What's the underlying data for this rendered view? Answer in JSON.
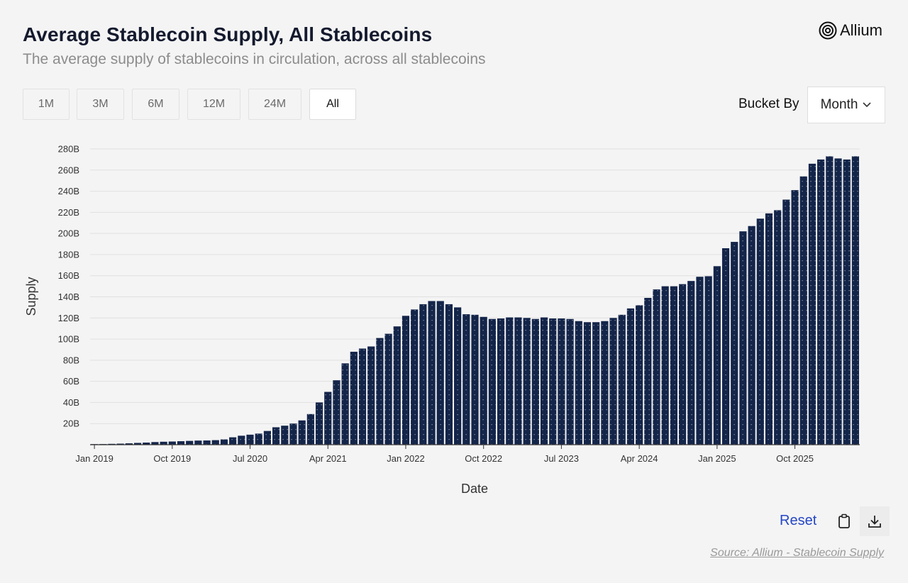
{
  "header": {
    "title": "Average Stablecoin Supply, All Stablecoins",
    "subtitle": "The average supply of stablecoins in circulation, across all stablecoins"
  },
  "logo": {
    "text": "Allium",
    "icon": "allium-logo-icon"
  },
  "time_ranges": [
    {
      "label": "1M",
      "active": false
    },
    {
      "label": "3M",
      "active": false
    },
    {
      "label": "6M",
      "active": false
    },
    {
      "label": "12M",
      "active": false
    },
    {
      "label": "24M",
      "active": false
    },
    {
      "label": "All",
      "active": true
    }
  ],
  "bucket": {
    "label": "Bucket By",
    "value": "Month",
    "icon": "chevron-down-icon"
  },
  "footer": {
    "reset_label": "Reset",
    "copy_icon": "clipboard-icon",
    "download_icon": "download-icon",
    "source": "Source: Allium - Stablecoin Supply"
  },
  "colors": {
    "bar": "#14254a",
    "accent": "#2446c6",
    "grid": "#e0e0e0"
  },
  "chart_data": {
    "type": "bar",
    "xlabel": "Date",
    "ylabel": "Supply",
    "ylim": [
      0,
      280
    ],
    "yticks": [
      20,
      40,
      60,
      80,
      100,
      120,
      140,
      160,
      180,
      200,
      220,
      240,
      260,
      280
    ],
    "ytick_labels": [
      "20B",
      "40B",
      "60B",
      "80B",
      "100B",
      "120B",
      "140B",
      "160B",
      "180B",
      "200B",
      "220B",
      "240B",
      "260B",
      "280B"
    ],
    "xtick_labels": [
      "Jan 2019",
      "Oct 2019",
      "Jul 2020",
      "Apr 2021",
      "Jan 2022",
      "Oct 2022",
      "Jul 2023",
      "Apr 2024",
      "Jan 2025",
      "Oct 2025"
    ],
    "xtick_every": 9,
    "first_period": "Jan 2019",
    "bucket": "Month",
    "unit": "B",
    "values": [
      0.5,
      0.6,
      0.8,
      1.0,
      1.3,
      1.7,
      2.0,
      2.5,
      2.8,
      3.0,
      3.3,
      3.6,
      3.9,
      4.0,
      4.3,
      5.0,
      7.0,
      8.5,
      9.5,
      10.5,
      13.0,
      16.5,
      18.0,
      20.0,
      23.0,
      29.0,
      40.0,
      50.0,
      61.0,
      77.0,
      88.0,
      91.0,
      93.0,
      101.0,
      105.0,
      112.0,
      122.0,
      128.0,
      133.0,
      136.0,
      136.0,
      133.0,
      130.0,
      123.5,
      123.0,
      121.0,
      119.0,
      119.5,
      120.5,
      120.5,
      120.0,
      119.0,
      120.5,
      119.5,
      119.5,
      119.0,
      117.0,
      116.0,
      116.0,
      117.0,
      120.0,
      123.0,
      129.0,
      132.0,
      139.0,
      147.0,
      150.0,
      150.0,
      152.0,
      155.0,
      159.0,
      159.5,
      169.0,
      186.0,
      192.0,
      202.0,
      207.0,
      214.0,
      219.0,
      222.0,
      232.0,
      241.0,
      254.0,
      266.0,
      270.0,
      273.0,
      271.0,
      270.0,
      273.0
    ]
  }
}
